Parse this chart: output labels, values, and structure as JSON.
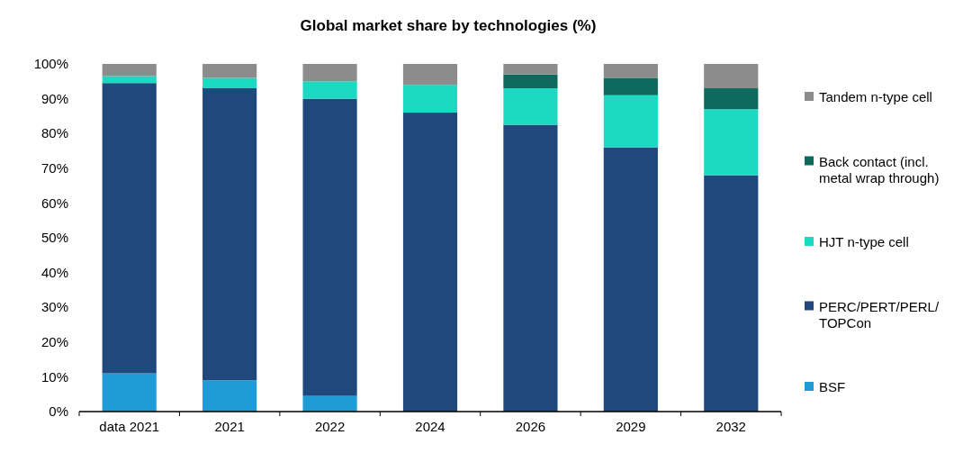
{
  "chart_data": {
    "type": "bar",
    "title": "Global market share by technologies (%)",
    "stacked": true,
    "legend": "right",
    "grid": false,
    "categories": [
      "data 2021",
      "2021",
      "2022",
      "2024",
      "2026",
      "2029",
      "2032"
    ],
    "ylim": [
      0,
      100
    ],
    "yticks": [
      {
        "value": 0,
        "label": "0%"
      },
      {
        "value": 10,
        "label": "10%"
      },
      {
        "value": 20,
        "label": "20%"
      },
      {
        "value": 30,
        "label": "30%"
      },
      {
        "value": 40,
        "label": "40%"
      },
      {
        "value": 50,
        "label": "50%"
      },
      {
        "value": 60,
        "label": "60%"
      },
      {
        "value": 70,
        "label": "70%"
      },
      {
        "value": 80,
        "label": "80%"
      },
      {
        "value": 90,
        "label": "90%"
      },
      {
        "value": 100,
        "label": "100%"
      }
    ],
    "series": [
      {
        "name": "BSF",
        "color": "#1f9bd7",
        "values": [
          11,
          9,
          4.5,
          0,
          0,
          0,
          0
        ]
      },
      {
        "name": "PERC/PERT/PERL/TOPCon",
        "color": "#1f497d",
        "values": [
          83.5,
          84,
          85.5,
          86,
          82.5,
          76,
          68
        ]
      },
      {
        "name": "HJT n-type cell",
        "color": "#1ed9c2",
        "values": [
          2,
          3,
          5,
          8,
          10.5,
          15,
          19
        ]
      },
      {
        "name": "Back contact (incl. metal wrap through)",
        "color": "#0f6a5e",
        "values": [
          0,
          0,
          0,
          0,
          4,
          5,
          6
        ]
      },
      {
        "name": "Tandem n-type cell",
        "color": "#8c8c8c",
        "values": [
          3.5,
          4,
          5,
          6,
          3,
          4,
          7
        ]
      }
    ]
  }
}
